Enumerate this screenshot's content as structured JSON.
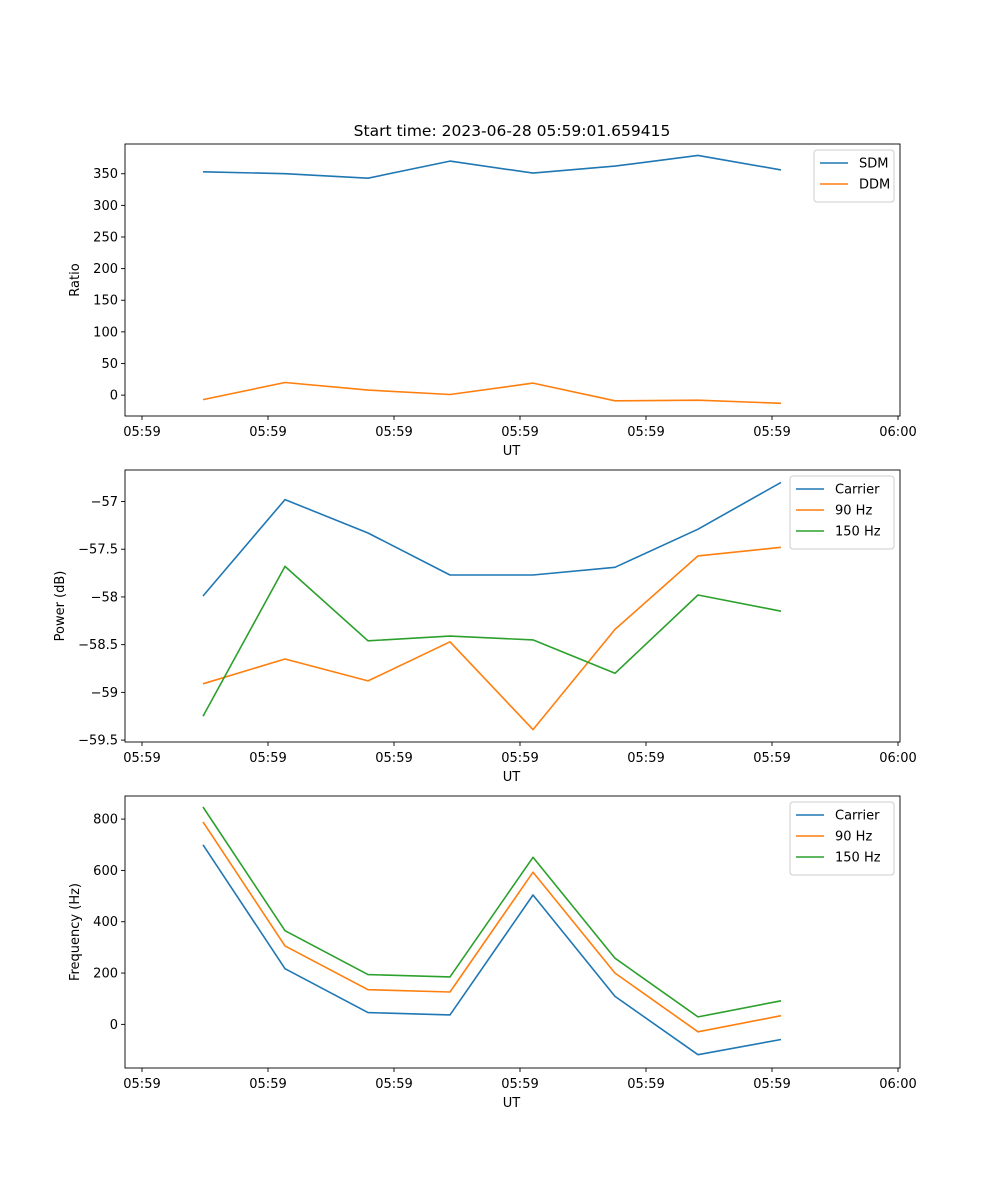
{
  "figure": {
    "title": "Start time: 2023-06-28 05:59:01.659415"
  },
  "chart_data": [
    {
      "type": "line",
      "title": "Start time: 2023-06-28 05:59:01.659415",
      "xlabel": "UT",
      "ylabel": "Ratio",
      "x_tick_labels": [
        "05:59",
        "05:59",
        "05:59",
        "05:59",
        "05:59",
        "05:59",
        "06:00"
      ],
      "y_ticks": [
        0,
        50,
        100,
        150,
        200,
        250,
        300,
        350
      ],
      "ylim": [
        -33,
        397
      ],
      "legend_position": "top-right",
      "grid": false,
      "series": [
        {
          "name": "SDM",
          "color": "#1f77b4",
          "values": [
            353,
            350,
            343,
            370,
            351,
            362,
            379,
            356
          ]
        },
        {
          "name": "DDM",
          "color": "#ff7f0e",
          "values": [
            -7,
            20,
            8,
            1,
            19,
            -9,
            -8,
            -13
          ]
        }
      ]
    },
    {
      "type": "line",
      "xlabel": "UT",
      "ylabel": "Power (dB)",
      "x_tick_labels": [
        "05:59",
        "05:59",
        "05:59",
        "05:59",
        "05:59",
        "05:59",
        "06:00"
      ],
      "y_ticks": [
        -59.5,
        -59.0,
        -58.5,
        -58.0,
        -57.5,
        -57.0
      ],
      "ylim": [
        -59.52,
        -56.67
      ],
      "legend_position": "top-right",
      "grid": false,
      "series": [
        {
          "name": "Carrier",
          "color": "#1f77b4",
          "values": [
            -57.99,
            -56.98,
            -57.33,
            -57.77,
            -57.77,
            -57.69,
            -57.29,
            -56.8
          ]
        },
        {
          "name": "90 Hz",
          "color": "#ff7f0e",
          "values": [
            -58.91,
            -58.65,
            -58.88,
            -58.47,
            -59.39,
            -58.34,
            -57.57,
            -57.48
          ]
        },
        {
          "name": "150 Hz",
          "color": "#2ca02c",
          "values": [
            -59.25,
            -57.68,
            -58.46,
            -58.41,
            -58.45,
            -58.8,
            -57.98,
            -58.15
          ]
        }
      ]
    },
    {
      "type": "line",
      "xlabel": "UT",
      "ylabel": "Frequency (Hz)",
      "x_tick_labels": [
        "05:59",
        "05:59",
        "05:59",
        "05:59",
        "05:59",
        "05:59",
        "06:00"
      ],
      "y_ticks": [
        0,
        200,
        400,
        600,
        800
      ],
      "ylim": [
        -170,
        890
      ],
      "legend_position": "top-right",
      "grid": false,
      "series": [
        {
          "name": "Carrier",
          "color": "#1f77b4",
          "values": [
            700,
            217,
            46,
            37,
            504,
            109,
            -118,
            -59
          ]
        },
        {
          "name": "90 Hz",
          "color": "#ff7f0e",
          "values": [
            789,
            306,
            135,
            126,
            593,
            200,
            -29,
            34
          ]
        },
        {
          "name": "150 Hz",
          "color": "#2ca02c",
          "values": [
            847,
            365,
            194,
            185,
            651,
            258,
            29,
            92
          ]
        }
      ]
    }
  ]
}
